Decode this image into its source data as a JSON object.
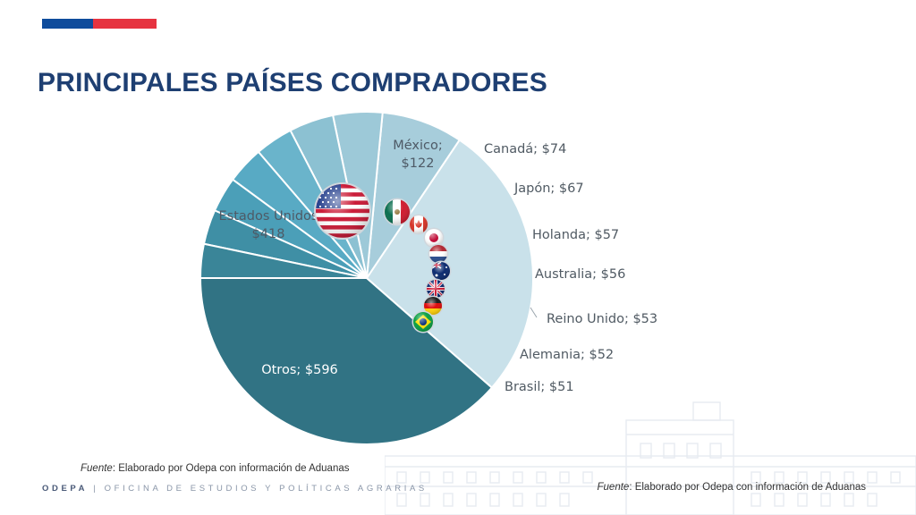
{
  "header": {
    "title": "PRINCIPALES PAÍSES COMPRADORES",
    "brand_colors": {
      "blue": "#0f4c9c",
      "red": "#e63340"
    }
  },
  "chart_data": {
    "type": "pie",
    "title": "",
    "categories": [
      "Otros",
      "Estados Unidos",
      "México",
      "Canadá",
      "Japón",
      "Holanda",
      "Australia",
      "Reino Unido",
      "Alemania",
      "Brasil"
    ],
    "values": [
      596,
      418,
      122,
      74,
      67,
      57,
      56,
      53,
      52,
      51
    ],
    "labels": [
      "Otros; $596",
      "Estados Unidos; $418",
      "México; $122",
      "Canadá; $74",
      "Japón; $67",
      "Holanda; $57",
      "Australia; $56",
      "Reino Unido; $53",
      "Alemania; $52",
      "Brasil; $51"
    ],
    "label_lines": {
      "Estados Unidos": [
        "Estados Unidos",
        "$418"
      ],
      "México": [
        "México;",
        "$122"
      ]
    },
    "colors": [
      "#317384",
      "#c9e1ea",
      "#a7cddb",
      "#9dc9d8",
      "#8cc1d2",
      "#6ab4cb",
      "#58aac4",
      "#4b9fb8",
      "#3f8fa5",
      "#3a8598"
    ],
    "flag_icons": [
      "usa-flag-icon",
      "mexico-flag-icon",
      "canada-flag-icon",
      "japan-flag-icon",
      "netherlands-flag-icon",
      "australia-flag-icon",
      "uk-flag-icon",
      "germany-flag-icon",
      "brazil-flag-icon"
    ]
  },
  "source": {
    "prefix": "Fuente",
    "text": ": Elaborado por Odepa con información de Aduanas"
  },
  "footer": {
    "brand": "ODEPA",
    "separator": "|",
    "org": "OFICINA DE ESTUDIOS Y POLÍTICAS AGRARIAS"
  }
}
